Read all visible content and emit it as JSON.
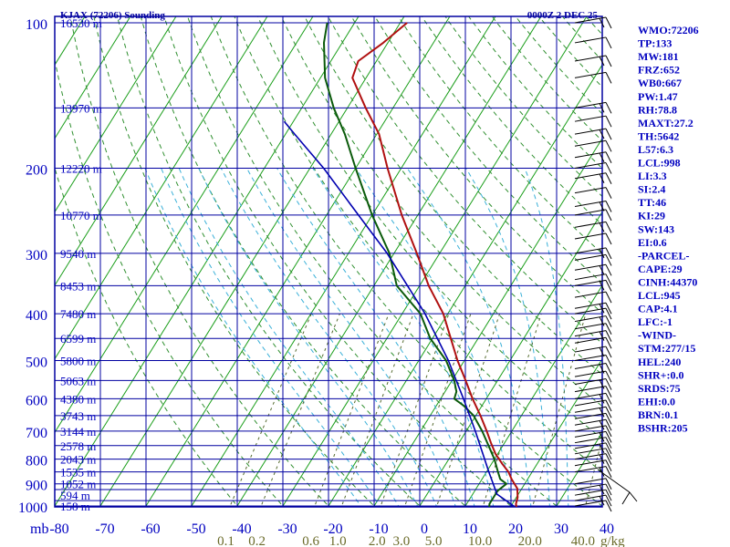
{
  "header": {
    "station": "KJAX (72206) Sounding",
    "time": "0000Z  2 DEC 25"
  },
  "colors": {
    "frame": "#0000a0",
    "isotherm": "#1a9e1a",
    "dry_adiabat": "#2f8f2f",
    "moist_adiabat": "#3ab0d8",
    "mixing_ratio": "#556b2f",
    "temperature": "#b01010",
    "dewpoint": "#0a5a0a",
    "parcel": "#0000b0",
    "axis_text": "#0000c0",
    "mixing_text": "#6b6b2a",
    "wind": "#000000"
  },
  "chart_data": {
    "type": "line",
    "title": "KJAX (72206) Sounding",
    "subtitle": "0000Z  2 DEC 25",
    "x_axis": {
      "unit": "",
      "range": [
        -80,
        40
      ],
      "ticks": [
        -80,
        -70,
        -60,
        -50,
        -40,
        -30,
        -20,
        -10,
        0,
        10,
        20,
        30,
        40
      ]
    },
    "y_axis": {
      "unit": "mb",
      "scale": "log",
      "range": [
        1000,
        100
      ],
      "ticks": [
        100,
        200,
        300,
        400,
        500,
        600,
        700,
        800,
        900,
        1000
      ],
      "minor_ticks": [
        150,
        250,
        350,
        450,
        550,
        650,
        750,
        850,
        925,
        975
      ]
    },
    "height_labels": [
      {
        "p": 100,
        "label": "16530 m"
      },
      {
        "p": 150,
        "label": "13970 m"
      },
      {
        "p": 200,
        "label": "12220 m"
      },
      {
        "p": 250,
        "label": "10770 m"
      },
      {
        "p": 300,
        "label": "9540 m"
      },
      {
        "p": 350,
        "label": "8453 m"
      },
      {
        "p": 400,
        "label": "7480 m"
      },
      {
        "p": 450,
        "label": "6599 m"
      },
      {
        "p": 500,
        "label": "5800 m"
      },
      {
        "p": 550,
        "label": "5063 m"
      },
      {
        "p": 600,
        "label": "4380 m"
      },
      {
        "p": 650,
        "label": "3743 m"
      },
      {
        "p": 700,
        "label": "3144 m"
      },
      {
        "p": 750,
        "label": "2578 m"
      },
      {
        "p": 800,
        "label": "2043 m"
      },
      {
        "p": 850,
        "label": "1535 m"
      },
      {
        "p": 900,
        "label": "1052 m"
      },
      {
        "p": 950,
        "label": "594 m"
      },
      {
        "p": 1000,
        "label": "158 m"
      }
    ],
    "mixing_ratio_labels": [
      "0.1",
      "0.2",
      "0.6",
      "1.0",
      "2.0",
      "3.0",
      "5.0",
      "10.0",
      "20.0",
      "40.0"
    ],
    "mixing_ratio_unit": "g/kg",
    "series": [
      {
        "name": "temperature",
        "points": [
          {
            "p": 1010,
            "t": 21.5
          },
          {
            "p": 990,
            "t": 20.8
          },
          {
            "p": 960,
            "t": 20.3
          },
          {
            "p": 920,
            "t": 19.0
          },
          {
            "p": 880,
            "t": 16.5
          },
          {
            "p": 850,
            "t": 14.8
          },
          {
            "p": 820,
            "t": 12.5
          },
          {
            "p": 780,
            "t": 9.5
          },
          {
            "p": 740,
            "t": 7.0
          },
          {
            "p": 700,
            "t": 4.5
          },
          {
            "p": 650,
            "t": 1.0
          },
          {
            "p": 600,
            "t": -3.0
          },
          {
            "p": 550,
            "t": -7.0
          },
          {
            "p": 500,
            "t": -11.5
          },
          {
            "p": 450,
            "t": -16.0
          },
          {
            "p": 400,
            "t": -21.0
          },
          {
            "p": 350,
            "t": -28.0
          },
          {
            "p": 300,
            "t": -35.0
          },
          {
            "p": 250,
            "t": -43.5
          },
          {
            "p": 200,
            "t": -53.0
          },
          {
            "p": 170,
            "t": -59.5
          },
          {
            "p": 150,
            "t": -66.0
          },
          {
            "p": 130,
            "t": -73.0
          },
          {
            "p": 120,
            "t": -74.0
          },
          {
            "p": 110,
            "t": -71.0
          },
          {
            "p": 100,
            "t": -68.5
          }
        ]
      },
      {
        "name": "dewpoint",
        "points": [
          {
            "p": 1010,
            "t": 15.5
          },
          {
            "p": 990,
            "t": 15.0
          },
          {
            "p": 960,
            "t": 15.0
          },
          {
            "p": 930,
            "t": 15.0
          },
          {
            "p": 900,
            "t": 16.0
          },
          {
            "p": 880,
            "t": 14.0
          },
          {
            "p": 850,
            "t": 12.5
          },
          {
            "p": 800,
            "t": 10.0
          },
          {
            "p": 760,
            "t": 7.5
          },
          {
            "p": 700,
            "t": 3.5
          },
          {
            "p": 650,
            "t": -0.5
          },
          {
            "p": 620,
            "t": -4.0
          },
          {
            "p": 600,
            "t": -7.0
          },
          {
            "p": 580,
            "t": -7.5
          },
          {
            "p": 550,
            "t": -9.5
          },
          {
            "p": 500,
            "t": -14.0
          },
          {
            "p": 450,
            "t": -20.5
          },
          {
            "p": 400,
            "t": -26.0
          },
          {
            "p": 350,
            "t": -35.0
          },
          {
            "p": 300,
            "t": -41.0
          },
          {
            "p": 250,
            "t": -50.0
          },
          {
            "p": 200,
            "t": -60.0
          },
          {
            "p": 170,
            "t": -67.0
          },
          {
            "p": 150,
            "t": -73.0
          },
          {
            "p": 130,
            "t": -79.0
          },
          {
            "p": 110,
            "t": -84.0
          },
          {
            "p": 100,
            "t": -86.0
          }
        ]
      },
      {
        "name": "parcel",
        "points": [
          {
            "p": 1010,
            "t": 21.5
          },
          {
            "p": 945,
            "t": 15.3
          },
          {
            "p": 850,
            "t": 10.5
          },
          {
            "p": 700,
            "t": 2.0
          },
          {
            "p": 600,
            "t": -5.0
          },
          {
            "p": 500,
            "t": -13.5
          },
          {
            "p": 400,
            "t": -25.0
          },
          {
            "p": 300,
            "t": -41.5
          },
          {
            "p": 250,
            "t": -53.0
          },
          {
            "p": 200,
            "t": -67.0
          },
          {
            "p": 170,
            "t": -78.0
          },
          {
            "p": 160,
            "t": -82.0
          }
        ]
      }
    ],
    "wind_levels": [
      100,
      110,
      120,
      130,
      150,
      160,
      170,
      180,
      190,
      200,
      210,
      225,
      240,
      250,
      265,
      280,
      300,
      310,
      325,
      340,
      350,
      370,
      390,
      400,
      415,
      430,
      445,
      460,
      480,
      500,
      520,
      540,
      560,
      580,
      600,
      620,
      640,
      660,
      680,
      700,
      720,
      740,
      760,
      780,
      800,
      825,
      850,
      900,
      925,
      950,
      975,
      1000
    ],
    "grid": true
  },
  "indices": [
    "WMO:72206",
    "TP:133",
    "MW:181",
    "FRZ:652",
    "WB0:667",
    "PW:1.47",
    "RH:78.8",
    "MAXT:27.2",
    "TH:5642",
    "L57:6.3",
    "LCL:998",
    "LI:3.3",
    "SI:2.4",
    "TT:46",
    "KI:29",
    "SW:143",
    "EI:0.6",
    "-PARCEL-",
    "CAPE:29",
    "CINH:44370",
    "LCL:945",
    "CAP:4.1",
    "LFC:-1",
    "-WIND-",
    "STM:277/15",
    "HEL:240",
    "SHR+:0.0",
    "SRDS:75",
    "EHI:0.0",
    "BRN:0.1",
    "BSHR:205"
  ]
}
